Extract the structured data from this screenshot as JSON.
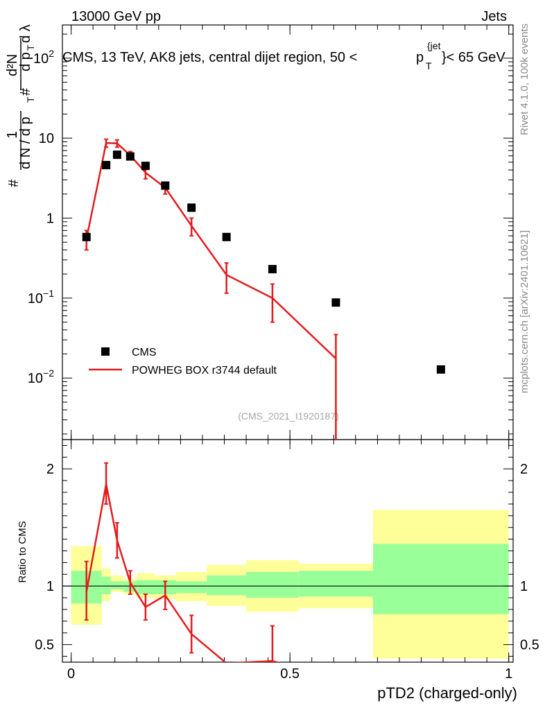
{
  "header": {
    "left": "13000 GeV pp",
    "right": "Jets",
    "side_rivet": "Rivet 4.1.0,  100k events",
    "side_site": "mcplots.cern.ch [arXiv:2401.10621]",
    "analysis_id": "(CMS_2021_I1920187)"
  },
  "chart_data": {
    "type": "line",
    "title": "CMS, 13 TeV, AK8 jets, central dijet region, 50 < p_T^{jet} < 65 GeV",
    "title_parts": {
      "main": "CMS, 13 TeV, AK8 jets, central dijet region, 50 <",
      "p": "p",
      "sub": "T",
      "sup": "{jet",
      "tail": "}< 65 GeV"
    },
    "xlabel": "pTD2 (charged-only)",
    "ylabel": "1/(dN/dp_T) # d^2N/(# dp_T dλ)",
    "ylabel_parts": [
      "#",
      "1",
      "d N / d p",
      "T",
      "#",
      "d²N",
      "d p",
      "T",
      "d λ"
    ],
    "ratio_ylabel": "Ratio to CMS",
    "xlim": [
      -0.02,
      1.01
    ],
    "ylim_main": [
      0.0017,
      260
    ],
    "ylim_ratio": [
      0.35,
      2.25
    ],
    "x_ticks": [
      0,
      0.5,
      1
    ],
    "x_tick_labels": [
      "0",
      "0.5",
      "1"
    ],
    "y_ticks_main": [
      {
        "value": 0.01,
        "base": "10",
        "exp": "−2"
      },
      {
        "value": 0.1,
        "base": "10",
        "exp": "−1"
      },
      {
        "value": 1,
        "base": "1",
        "exp": ""
      },
      {
        "value": 10,
        "base": "10",
        "exp": ""
      },
      {
        "value": 100,
        "base": "10",
        "exp": "2"
      }
    ],
    "y_ticks_ratio": [
      {
        "value": 0.5,
        "label": "0.5"
      },
      {
        "value": 1,
        "label": "1"
      },
      {
        "value": 2,
        "label": "2"
      }
    ],
    "bin_edges": [
      0,
      0.07,
      0.09,
      0.12,
      0.15,
      0.19,
      0.24,
      0.31,
      0.4,
      0.52,
      0.69,
      1.0
    ],
    "legend": [
      {
        "name": "CMS",
        "marker": "square"
      },
      {
        "name": "POWHEG BOX r3744 default",
        "marker": "line"
      }
    ],
    "series": [
      {
        "name": "CMS",
        "x": [
          0.035,
          0.08,
          0.105,
          0.135,
          0.17,
          0.215,
          0.275,
          0.355,
          0.46,
          0.605,
          0.845
        ],
        "values": [
          0.58,
          4.6,
          6.2,
          5.9,
          4.5,
          2.55,
          1.35,
          0.58,
          0.23,
          0.088,
          0.0128
        ]
      },
      {
        "name": "POWHEG BOX r3744 default",
        "x": [
          0.035,
          0.08,
          0.105,
          0.135,
          0.17,
          0.215,
          0.275,
          0.355,
          0.46,
          0.605
        ],
        "values": [
          0.55,
          8.7,
          8.6,
          6.1,
          3.7,
          2.4,
          0.8,
          0.195,
          0.1,
          0.0175
        ],
        "err_low": [
          0.15,
          1.0,
          0.9,
          0.7,
          0.6,
          0.4,
          0.2,
          0.08,
          0.05,
          0.0168
        ],
        "err_high": [
          0.15,
          1.0,
          0.9,
          0.7,
          0.6,
          0.4,
          0.2,
          0.08,
          0.05,
          0.0175
        ]
      }
    ],
    "ratio": {
      "x": [
        0.035,
        0.08,
        0.105,
        0.135,
        0.17,
        0.215,
        0.275,
        0.355,
        0.46,
        0.605
      ],
      "values": [
        0.95,
        1.87,
        1.39,
        1.03,
        0.82,
        0.92,
        0.59,
        0.34,
        0.36,
        0.2
      ],
      "err_low": [
        0.24,
        0.17,
        0.15,
        0.1,
        0.11,
        0.12,
        0.16,
        0.1,
        0.2,
        0.2
      ],
      "err_high": [
        0.26,
        0.18,
        0.15,
        0.1,
        0.11,
        0.12,
        0.16,
        0.1,
        0.3,
        0.2
      ],
      "band_green_low": [
        0.85,
        0.93,
        0.97,
        0.95,
        0.93,
        0.93,
        0.94,
        0.92,
        0.9,
        0.91,
        0.76
      ],
      "band_green_high": [
        1.13,
        1.08,
        1.04,
        1.04,
        1.05,
        1.05,
        1.04,
        1.09,
        1.12,
        1.13,
        1.36
      ],
      "band_yellow_low": [
        0.67,
        0.87,
        0.95,
        0.93,
        0.9,
        0.89,
        0.87,
        0.83,
        0.78,
        0.81,
        0.38
      ],
      "band_yellow_high": [
        1.34,
        1.15,
        1.09,
        1.06,
        1.11,
        1.09,
        1.12,
        1.18,
        1.22,
        1.19,
        1.65
      ]
    }
  }
}
